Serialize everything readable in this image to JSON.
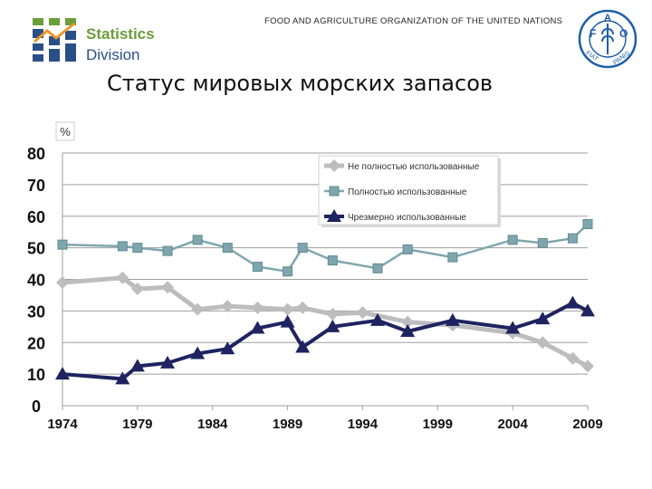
{
  "header": {
    "logo_line1": "Statistics",
    "logo_line2": "Division",
    "org_name": "FOOD AND AGRICULTURE ORGANIZATION OF THE UNITED NATIONS",
    "fao_logo": {
      "icon": "fao-emblem-icon",
      "letters": [
        "F",
        "A",
        "O"
      ],
      "motto_left": "FIAT",
      "motto_right": "PANIS"
    }
  },
  "colors": {
    "not_fully": "#bdbdbd",
    "fully": "#7fa6ad",
    "over": "#1f2360",
    "logo_green": "#6a9e3a",
    "logo_blue": "#2a4f86",
    "fao_blue": "#1f5ea8"
  },
  "chart_data": {
    "type": "line",
    "title": "Статус мировых морских запасов",
    "ylabel": "%",
    "xlabel": "",
    "x_ticks": [
      1974,
      1979,
      1984,
      1989,
      1994,
      1999,
      2004,
      2009
    ],
    "y_ticks": [
      0,
      10,
      20,
      30,
      40,
      50,
      60,
      70,
      80
    ],
    "xlim": [
      1974,
      2009
    ],
    "ylim": [
      0,
      80
    ],
    "grid": "horizontal",
    "legend_position": "top-right",
    "series": [
      {
        "name": "Не полностью использованные",
        "marker": "diamond",
        "color_key": "not_fully",
        "x": [
          1974,
          1978,
          1979,
          1981,
          1983,
          1985,
          1987,
          1989,
          1990,
          1992,
          1994,
          1997,
          2000,
          2004,
          2006,
          2008,
          2009
        ],
        "y": [
          39,
          40.5,
          37,
          37.5,
          30.5,
          31.5,
          31,
          30.5,
          31,
          29,
          29.5,
          26.5,
          25.5,
          23,
          20,
          15,
          12.5
        ]
      },
      {
        "name": "Полностью использованные",
        "marker": "square",
        "color_key": "fully",
        "x": [
          1974,
          1978,
          1979,
          1981,
          1983,
          1985,
          1987,
          1989,
          1990,
          1992,
          1995,
          1997,
          2000,
          2004,
          2006,
          2008,
          2009
        ],
        "y": [
          51,
          50.5,
          50,
          49,
          52.5,
          50,
          44,
          42.5,
          50,
          46,
          43.5,
          49.5,
          47,
          52.5,
          51.5,
          53,
          57.5
        ]
      },
      {
        "name": "Чрезмерно использованные",
        "marker": "triangle",
        "color_key": "over",
        "x": [
          1974,
          1978,
          1979,
          1981,
          1983,
          1985,
          1987,
          1989,
          1990,
          1992,
          1995,
          1997,
          2000,
          2004,
          2006,
          2008,
          2009
        ],
        "y": [
          10,
          8.5,
          12.5,
          13.5,
          16.5,
          18,
          24.5,
          26.5,
          18.5,
          25,
          27,
          23.5,
          27,
          24.5,
          27.5,
          32.5,
          30
        ]
      }
    ]
  }
}
